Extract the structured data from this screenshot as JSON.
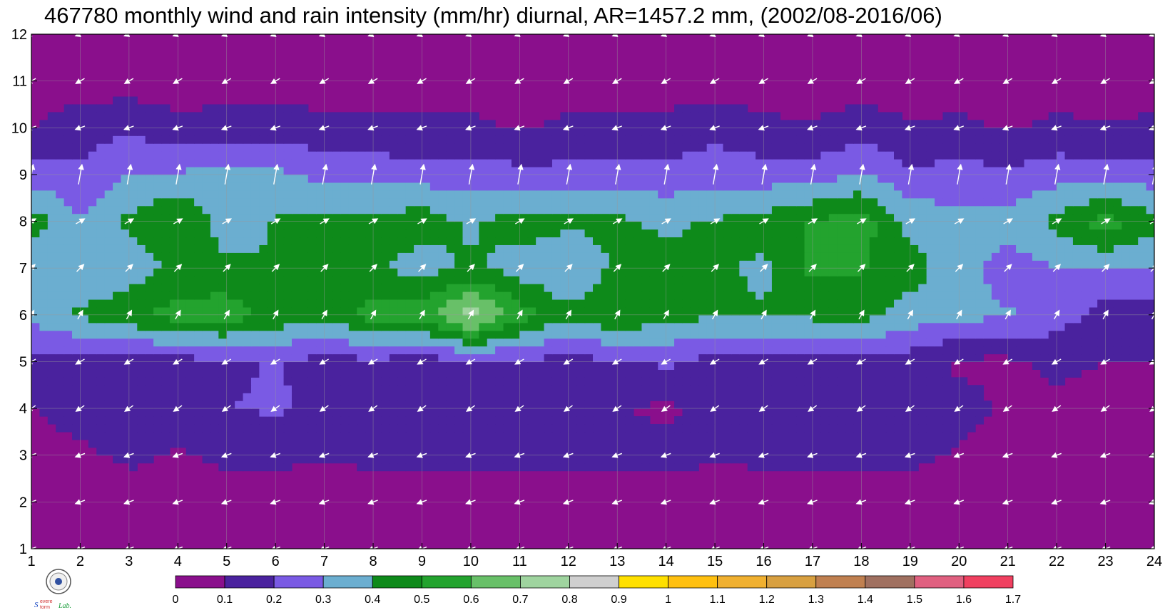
{
  "chart_data": {
    "type": "contour",
    "title": "467780 monthly wind and rain intensity (mm/hr) diurnal, AR=1457.2 mm, (2002/08-2016/06)",
    "xlabel": "",
    "ylabel": "",
    "xlim": [
      1,
      24
    ],
    "ylim": [
      1,
      12
    ],
    "x_ticks": [
      1,
      2,
      3,
      4,
      5,
      6,
      7,
      8,
      9,
      10,
      11,
      12,
      13,
      14,
      15,
      16,
      17,
      18,
      19,
      20,
      21,
      22,
      23,
      24
    ],
    "y_ticks": [
      1,
      2,
      3,
      4,
      5,
      6,
      7,
      8,
      9,
      10,
      11,
      12
    ],
    "grid": true,
    "colorbar": {
      "levels": [
        0,
        0.1,
        0.2,
        0.3,
        0.4,
        0.5,
        0.6,
        0.7,
        0.8,
        0.9,
        1,
        1.1,
        1.2,
        1.3,
        1.4,
        1.5,
        1.6,
        1.7
      ],
      "colors": [
        "#8a0f8c",
        "#4a229e",
        "#7a5ae4",
        "#6baed0",
        "#0e8a1a",
        "#23a32e",
        "#68c068",
        "#9fd49f",
        "#cfcfcf",
        "#ffe000",
        "#ffc010",
        "#f0b030",
        "#d8a040",
        "#c08050",
        "#a07060",
        "#e06080",
        "#f04060"
      ],
      "placement": "bottom"
    },
    "contour_line_color": "#f4a820",
    "hours": [
      1,
      2,
      3,
      4,
      5,
      6,
      7,
      8,
      9,
      10,
      11,
      12,
      13,
      14,
      15,
      16,
      17,
      18,
      19,
      20,
      21,
      22,
      23,
      24
    ],
    "months": [
      1,
      2,
      3,
      4,
      5,
      6,
      7,
      8,
      9,
      10,
      11,
      12
    ],
    "rain_intensity": [
      [
        0.05,
        0.05,
        0.05,
        0.05,
        0.05,
        0.05,
        0.05,
        0.05,
        0.05,
        0.05,
        0.05,
        0.05,
        0.05,
        0.05,
        0.05,
        0.05,
        0.05,
        0.05,
        0.05,
        0.05,
        0.05,
        0.05,
        0.05,
        0.05
      ],
      [
        0.05,
        0.05,
        0.05,
        0.05,
        0.05,
        0.05,
        0.05,
        0.05,
        0.05,
        0.05,
        0.05,
        0.05,
        0.05,
        0.05,
        0.05,
        0.05,
        0.05,
        0.05,
        0.05,
        0.05,
        0.05,
        0.05,
        0.05,
        0.05
      ],
      [
        0.05,
        0.08,
        0.12,
        0.09,
        0.12,
        0.12,
        0.11,
        0.12,
        0.12,
        0.12,
        0.12,
        0.12,
        0.12,
        0.13,
        0.11,
        0.12,
        0.12,
        0.12,
        0.12,
        0.09,
        0.05,
        0.05,
        0.05,
        0.05
      ],
      [
        0.1,
        0.14,
        0.17,
        0.15,
        0.2,
        0.21,
        0.18,
        0.15,
        0.14,
        0.14,
        0.15,
        0.12,
        0.11,
        0.08,
        0.13,
        0.14,
        0.11,
        0.11,
        0.1,
        0.14,
        0.08,
        0.08,
        0.07,
        0.1
      ],
      [
        0.19,
        0.14,
        0.15,
        0.16,
        0.18,
        0.21,
        0.16,
        0.18,
        0.15,
        0.19,
        0.18,
        0.17,
        0.18,
        0.22,
        0.16,
        0.16,
        0.17,
        0.17,
        0.15,
        0.08,
        0.08,
        0.12,
        0.1,
        0.1
      ],
      [
        0.32,
        0.42,
        0.46,
        0.55,
        0.56,
        0.47,
        0.42,
        0.54,
        0.55,
        0.76,
        0.55,
        0.42,
        0.51,
        0.42,
        0.42,
        0.41,
        0.42,
        0.44,
        0.36,
        0.33,
        0.31,
        0.25,
        0.15,
        0.15
      ],
      [
        0.33,
        0.31,
        0.35,
        0.42,
        0.42,
        0.4,
        0.42,
        0.42,
        0.35,
        0.42,
        0.35,
        0.31,
        0.42,
        0.44,
        0.42,
        0.38,
        0.52,
        0.51,
        0.44,
        0.35,
        0.25,
        0.3,
        0.3,
        0.31
      ],
      [
        0.46,
        0.31,
        0.42,
        0.5,
        0.35,
        0.41,
        0.42,
        0.42,
        0.46,
        0.38,
        0.46,
        0.42,
        0.42,
        0.38,
        0.41,
        0.44,
        0.51,
        0.55,
        0.36,
        0.34,
        0.34,
        0.43,
        0.55,
        0.43
      ],
      [
        0.25,
        0.22,
        0.31,
        0.31,
        0.34,
        0.32,
        0.27,
        0.26,
        0.25,
        0.25,
        0.23,
        0.23,
        0.23,
        0.24,
        0.25,
        0.25,
        0.25,
        0.31,
        0.22,
        0.24,
        0.22,
        0.26,
        0.25,
        0.25
      ],
      [
        0.1,
        0.15,
        0.18,
        0.13,
        0.14,
        0.16,
        0.12,
        0.12,
        0.12,
        0.12,
        0.09,
        0.12,
        0.12,
        0.13,
        0.17,
        0.12,
        0.11,
        0.15,
        0.11,
        0.12,
        0.09,
        0.12,
        0.11,
        0.12
      ],
      [
        0.05,
        0.05,
        0.05,
        0.05,
        0.05,
        0.05,
        0.05,
        0.05,
        0.05,
        0.05,
        0.05,
        0.05,
        0.05,
        0.05,
        0.05,
        0.05,
        0.05,
        0.05,
        0.05,
        0.05,
        0.05,
        0.05,
        0.05,
        0.05
      ],
      [
        0.05,
        0.05,
        0.05,
        0.05,
        0.05,
        0.05,
        0.05,
        0.05,
        0.05,
        0.05,
        0.05,
        0.05,
        0.05,
        0.05,
        0.05,
        0.05,
        0.05,
        0.05,
        0.05,
        0.05,
        0.05,
        0.05,
        0.05,
        0.05
      ]
    ],
    "wind_vectors": {
      "vector_color": "#ffffff",
      "by_month_direction_deg": {
        "1": 200,
        "2": 200,
        "3": 200,
        "4": 215,
        "5": 210,
        "6": 60,
        "7": 45,
        "8": 30,
        "9": 80,
        "10": 200,
        "11": 210,
        "12": 200
      }
    }
  },
  "logo": {
    "name": "severe-storm-lab-logo",
    "text": "Severe Storm Lab."
  }
}
